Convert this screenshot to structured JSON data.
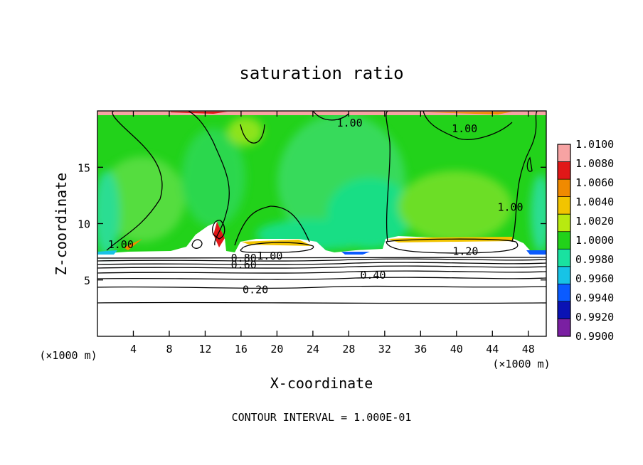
{
  "chart_data": {
    "type": "heatmap",
    "title": "saturation ratio",
    "xlabel": "X-coordinate",
    "ylabel": "Z-coordinate",
    "x_unit": "(×1000 m)",
    "y_unit": "(×1000 m)",
    "xlim": [
      0,
      50
    ],
    "ylim": [
      0,
      20
    ],
    "x_ticks": [
      4,
      8,
      12,
      16,
      20,
      24,
      28,
      32,
      36,
      40,
      44,
      48
    ],
    "y_ticks": [
      5,
      10,
      15
    ],
    "colorbar": {
      "levels": [
        0.99,
        0.992,
        0.994,
        0.996,
        0.998,
        1.0,
        1.002,
        1.004,
        1.006,
        1.008,
        1.01
      ],
      "labels": [
        "0.9900",
        "0.9920",
        "0.9940",
        "0.9960",
        "0.9980",
        "1.0000",
        "1.0020",
        "1.0040",
        "1.0060",
        "1.0080",
        "1.0100"
      ],
      "colors": [
        "#7a1fa2",
        "#0a12b4",
        "#0a5bff",
        "#17c3e6",
        "#19e2a0",
        "#22d21a",
        "#b8ea10",
        "#f2c400",
        "#f08a00",
        "#e01818",
        "#f7a3a3"
      ]
    },
    "contour_interval_text": "CONTOUR INTERVAL = 1.000E-01",
    "contour_labels": [
      {
        "text": "0.20",
        "x": 17.6,
        "y": 4.2
      },
      {
        "text": "0.40",
        "x": 30.7,
        "y": 5.5
      },
      {
        "text": "0.60",
        "x": 16.3,
        "y": 6.4
      },
      {
        "text": "0.80",
        "x": 16.3,
        "y": 7.0
      },
      {
        "text": "1.00",
        "x": 19.2,
        "y": 7.2
      },
      {
        "text": "1.00",
        "x": 2.6,
        "y": 8.2
      },
      {
        "text": "1.00",
        "x": 28.1,
        "y": 19.0
      },
      {
        "text": "1.00",
        "x": 40.9,
        "y": 18.5
      },
      {
        "text": "1.00",
        "x": 46.0,
        "y": 11.5
      },
      {
        "text": "1.20",
        "x": 41.0,
        "y": 7.6
      }
    ],
    "lower_contour_levels_z": [
      2.9,
      4.3,
      5.0,
      5.5,
      5.9,
      6.2,
      6.5,
      6.8,
      7.0,
      7.2
    ]
  }
}
